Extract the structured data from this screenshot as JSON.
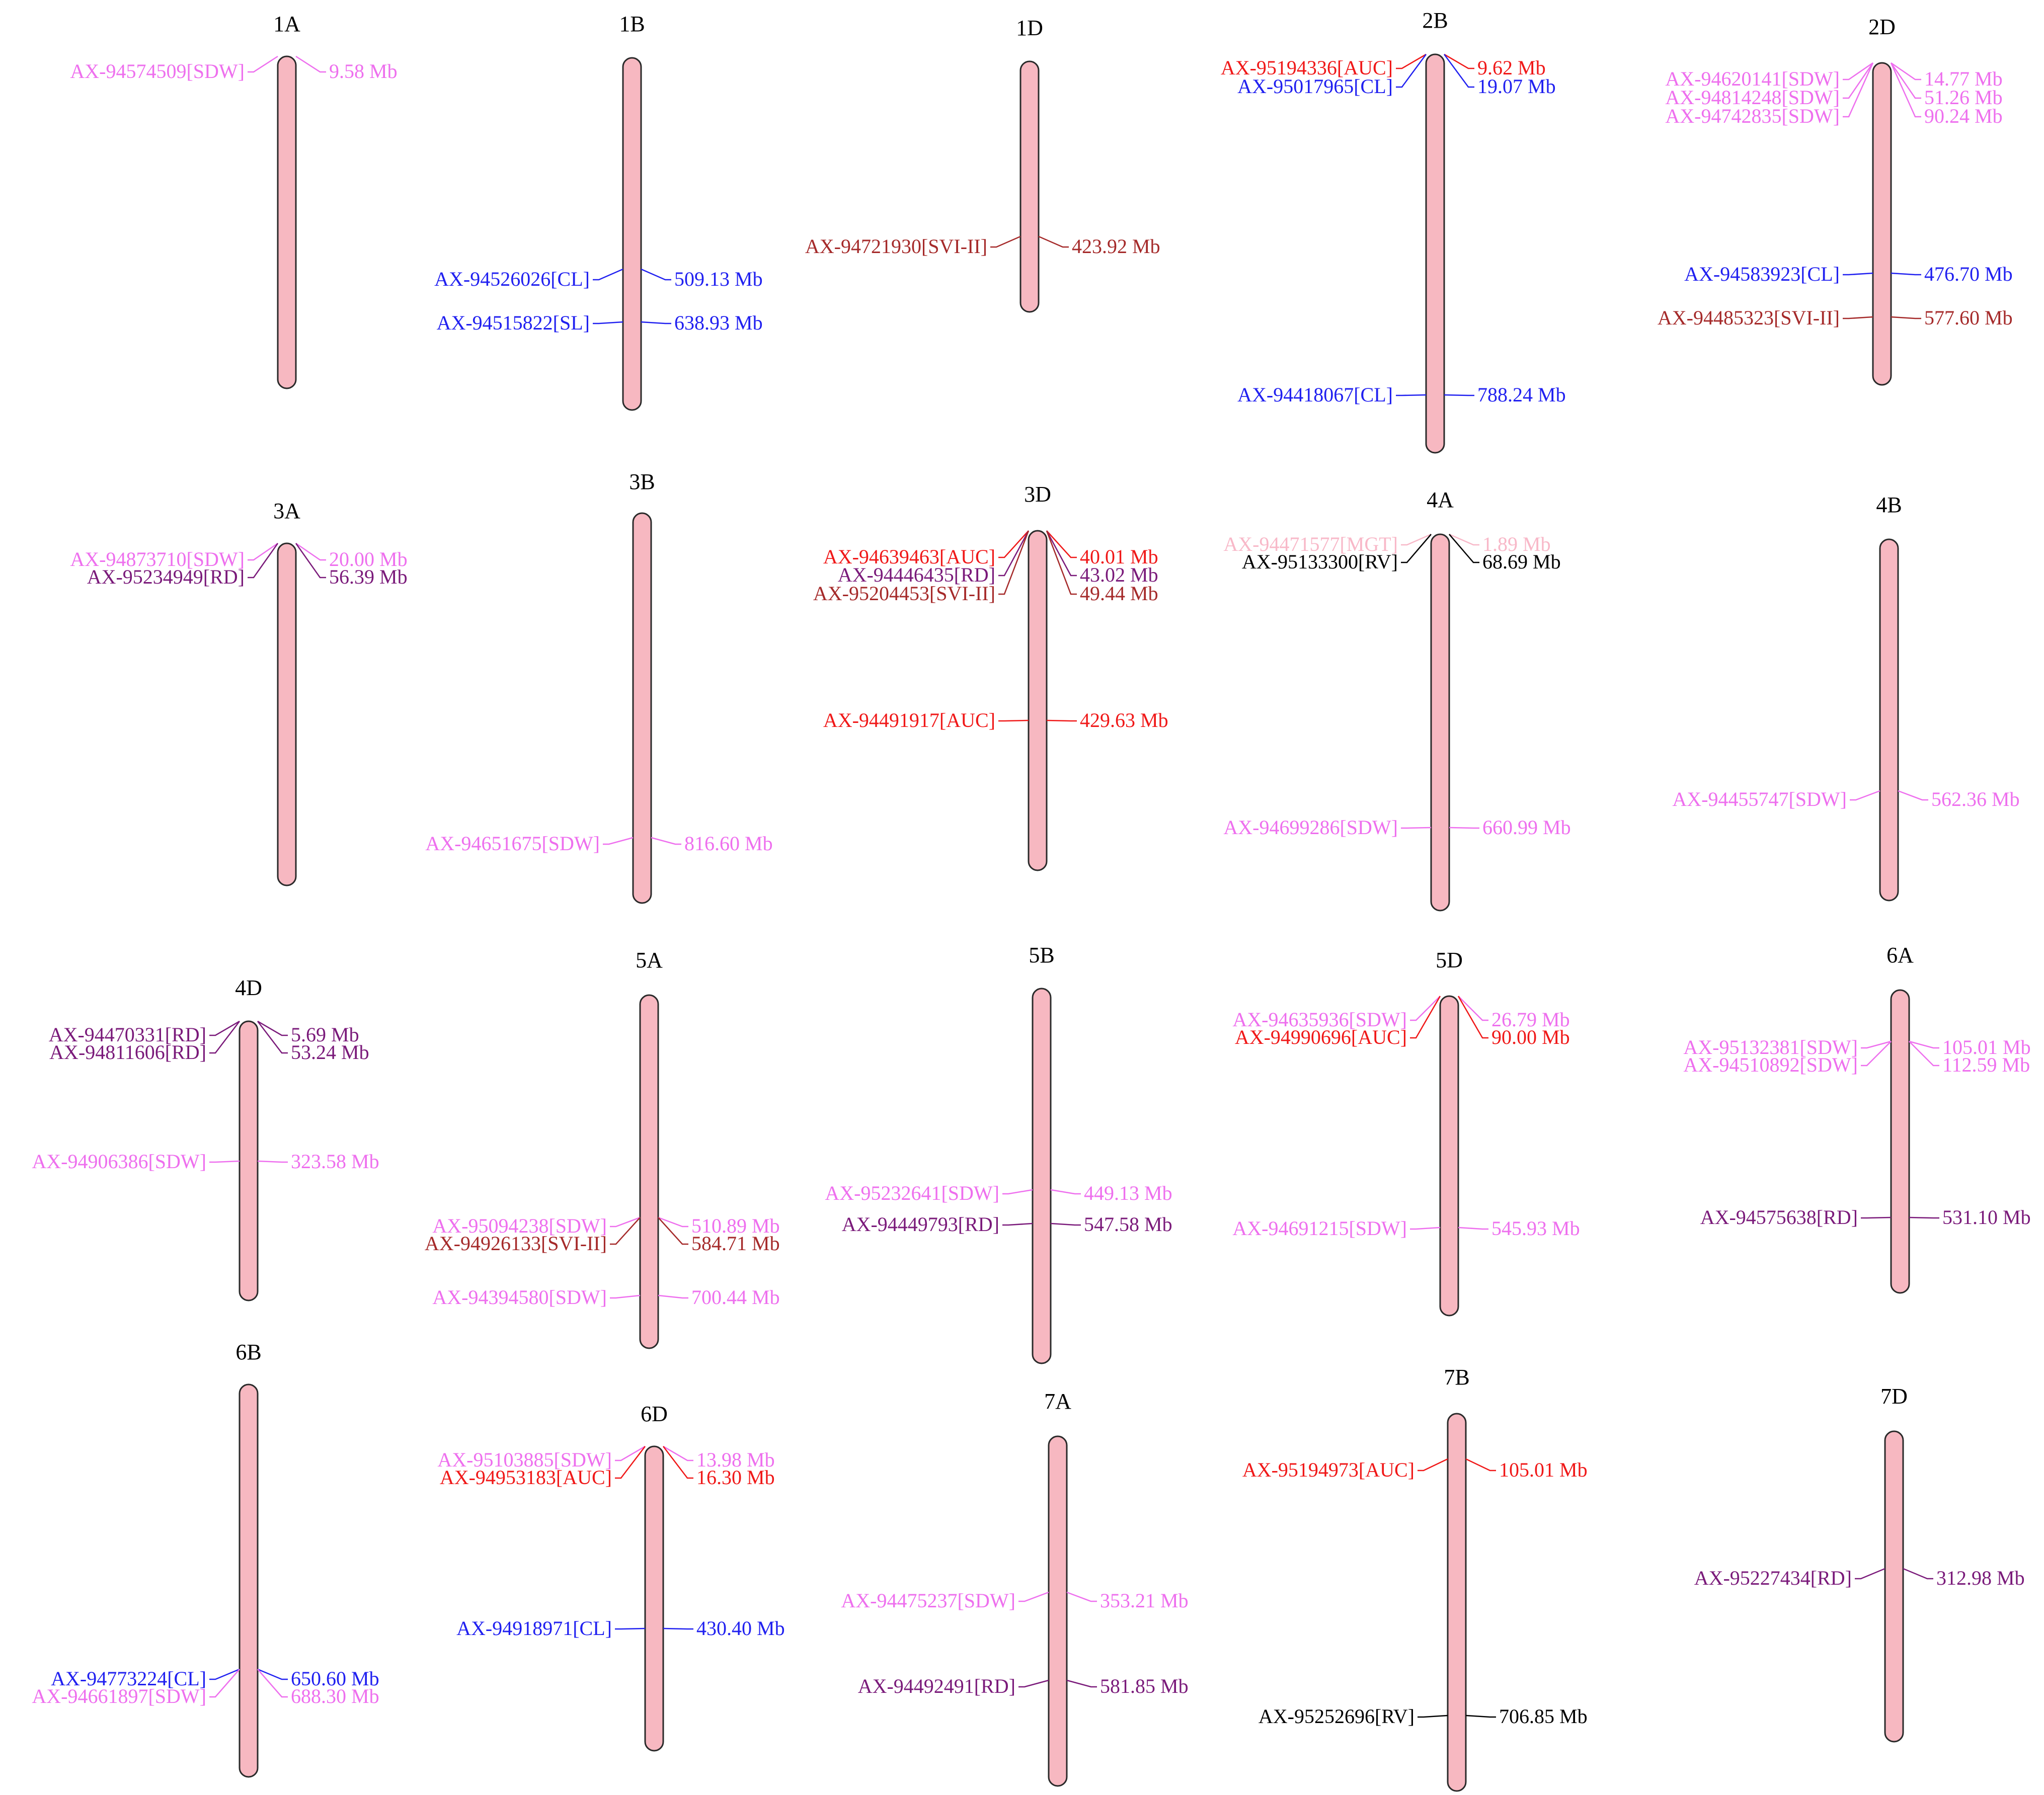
{
  "colors": {
    "chromosome_fill": "#F7B8C1",
    "chromosome_stroke": "#2A2A2A",
    "SDW": "#EE6FEE",
    "CL": "#2020F0",
    "SL": "#2020F0",
    "AUC": "#F01818",
    "SVI-II": "#A52A2A",
    "RD": "#7A1A7A",
    "RV": "#000000",
    "MGT": "#F8B8C8"
  },
  "chromosomes": [
    {
      "name": "1A",
      "markers": [
        {
          "id": "AX-94574509[SDW]",
          "trait": "SDW",
          "position": "9.58 Mb"
        }
      ]
    },
    {
      "name": "1B",
      "markers": [
        {
          "id": "AX-94526026[CL]",
          "trait": "CL",
          "position": "509.13 Mb"
        },
        {
          "id": "AX-94515822[SL]",
          "trait": "SL",
          "position": "638.93 Mb"
        }
      ]
    },
    {
      "name": "1D",
      "markers": [
        {
          "id": "AX-94721930[SVI-II]",
          "trait": "SVI-II",
          "position": "423.92 Mb"
        }
      ]
    },
    {
      "name": "2B",
      "markers": [
        {
          "id": "AX-95194336[AUC]",
          "trait": "AUC",
          "position": "9.62 Mb"
        },
        {
          "id": "AX-95017965[CL]",
          "trait": "CL",
          "position": "19.07 Mb"
        },
        {
          "id": "AX-94418067[CL]",
          "trait": "CL",
          "position": "788.24 Mb"
        }
      ]
    },
    {
      "name": "2D",
      "markers": [
        {
          "id": "AX-94620141[SDW]",
          "trait": "SDW",
          "position": "14.77 Mb"
        },
        {
          "id": "AX-94814248[SDW]",
          "trait": "SDW",
          "position": "51.26 Mb"
        },
        {
          "id": "AX-94742835[SDW]",
          "trait": "SDW",
          "position": "90.24 Mb"
        },
        {
          "id": "AX-94583923[CL]",
          "trait": "CL",
          "position": "476.70 Mb"
        },
        {
          "id": "AX-94485323[SVI-II]",
          "trait": "SVI-II",
          "position": "577.60 Mb"
        }
      ]
    },
    {
      "name": "3A",
      "markers": [
        {
          "id": "AX-94873710[SDW]",
          "trait": "SDW",
          "position": "20.00 Mb"
        },
        {
          "id": "AX-95234949[RD]",
          "trait": "RD",
          "position": "56.39 Mb"
        }
      ]
    },
    {
      "name": "3B",
      "markers": [
        {
          "id": "AX-94651675[SDW]",
          "trait": "SDW",
          "position": "816.60 Mb"
        }
      ]
    },
    {
      "name": "3D",
      "markers": [
        {
          "id": "AX-94639463[AUC]",
          "trait": "AUC",
          "position": "40.01 Mb"
        },
        {
          "id": "AX-94446435[RD]",
          "trait": "RD",
          "position": "43.02 Mb"
        },
        {
          "id": "AX-95204453[SVI-II]",
          "trait": "SVI-II",
          "position": "49.44 Mb"
        },
        {
          "id": "AX-94491917[AUC]",
          "trait": "AUC",
          "position": "429.63 Mb"
        }
      ]
    },
    {
      "name": "4A",
      "markers": [
        {
          "id": "AX-94471577[MGT]",
          "trait": "MGT",
          "position": "1.89 Mb"
        },
        {
          "id": "AX-95133300[RV]",
          "trait": "RV",
          "position": "68.69 Mb"
        },
        {
          "id": "AX-94699286[SDW]",
          "trait": "SDW",
          "position": "660.99 Mb"
        }
      ]
    },
    {
      "name": "4B",
      "markers": [
        {
          "id": "AX-94455747[SDW]",
          "trait": "SDW",
          "position": "562.36 Mb"
        }
      ]
    },
    {
      "name": "4D",
      "markers": [
        {
          "id": "AX-94470331[RD]",
          "trait": "RD",
          "position": "5.69 Mb"
        },
        {
          "id": "AX-94811606[RD]",
          "trait": "RD",
          "position": "53.24 Mb"
        },
        {
          "id": "AX-94906386[SDW]",
          "trait": "SDW",
          "position": "323.58 Mb"
        }
      ]
    },
    {
      "name": "5A",
      "markers": [
        {
          "id": "AX-95094238[SDW]",
          "trait": "SDW",
          "position": "510.89 Mb"
        },
        {
          "id": "AX-94926133[SVI-II]",
          "trait": "SVI-II",
          "position": "584.71 Mb"
        },
        {
          "id": "AX-94394580[SDW]",
          "trait": "SDW",
          "position": "700.44 Mb"
        }
      ]
    },
    {
      "name": "5B",
      "markers": [
        {
          "id": "AX-95232641[SDW]",
          "trait": "SDW",
          "position": "449.13 Mb"
        },
        {
          "id": "AX-94449793[RD]",
          "trait": "RD",
          "position": "547.58 Mb"
        }
      ]
    },
    {
      "name": "5D",
      "markers": [
        {
          "id": "AX-94635936[SDW]",
          "trait": "SDW",
          "position": "26.79 Mb"
        },
        {
          "id": "AX-94990696[AUC]",
          "trait": "AUC",
          "position": "90.00 Mb"
        },
        {
          "id": "AX-94691215[SDW]",
          "trait": "SDW",
          "position": "545.93 Mb"
        }
      ]
    },
    {
      "name": "6A",
      "markers": [
        {
          "id": "AX-95132381[SDW]",
          "trait": "SDW",
          "position": "105.01 Mb"
        },
        {
          "id": "AX-94510892[SDW]",
          "trait": "SDW",
          "position": "112.59 Mb"
        },
        {
          "id": "AX-94575638[RD]",
          "trait": "RD",
          "position": "531.10 Mb"
        }
      ]
    },
    {
      "name": "6B",
      "markers": [
        {
          "id": "AX-94773224[CL]",
          "trait": "CL",
          "position": "650.60 Mb"
        },
        {
          "id": "AX-94661897[SDW]",
          "trait": "SDW",
          "position": "688.30 Mb"
        }
      ]
    },
    {
      "name": "6D",
      "markers": [
        {
          "id": "AX-95103885[SDW]",
          "trait": "SDW",
          "position": "13.98 Mb"
        },
        {
          "id": "AX-94953183[AUC]",
          "trait": "AUC",
          "position": "16.30 Mb"
        },
        {
          "id": "AX-94918971[CL]",
          "trait": "CL",
          "position": "430.40 Mb"
        }
      ]
    },
    {
      "name": "7A",
      "markers": [
        {
          "id": "AX-94475237[SDW]",
          "trait": "SDW",
          "position": "353.21 Mb"
        },
        {
          "id": "AX-94492491[RD]",
          "trait": "RD",
          "position": "581.85 Mb"
        }
      ]
    },
    {
      "name": "7B",
      "markers": [
        {
          "id": "AX-95194973[AUC]",
          "trait": "AUC",
          "position": "105.01 Mb"
        },
        {
          "id": "AX-95252696[RV]",
          "trait": "RV",
          "position": "706.85 Mb"
        }
      ]
    },
    {
      "name": "7D",
      "markers": [
        {
          "id": "AX-95227434[RD]",
          "trait": "RD",
          "position": "312.98 Mb"
        }
      ]
    }
  ]
}
